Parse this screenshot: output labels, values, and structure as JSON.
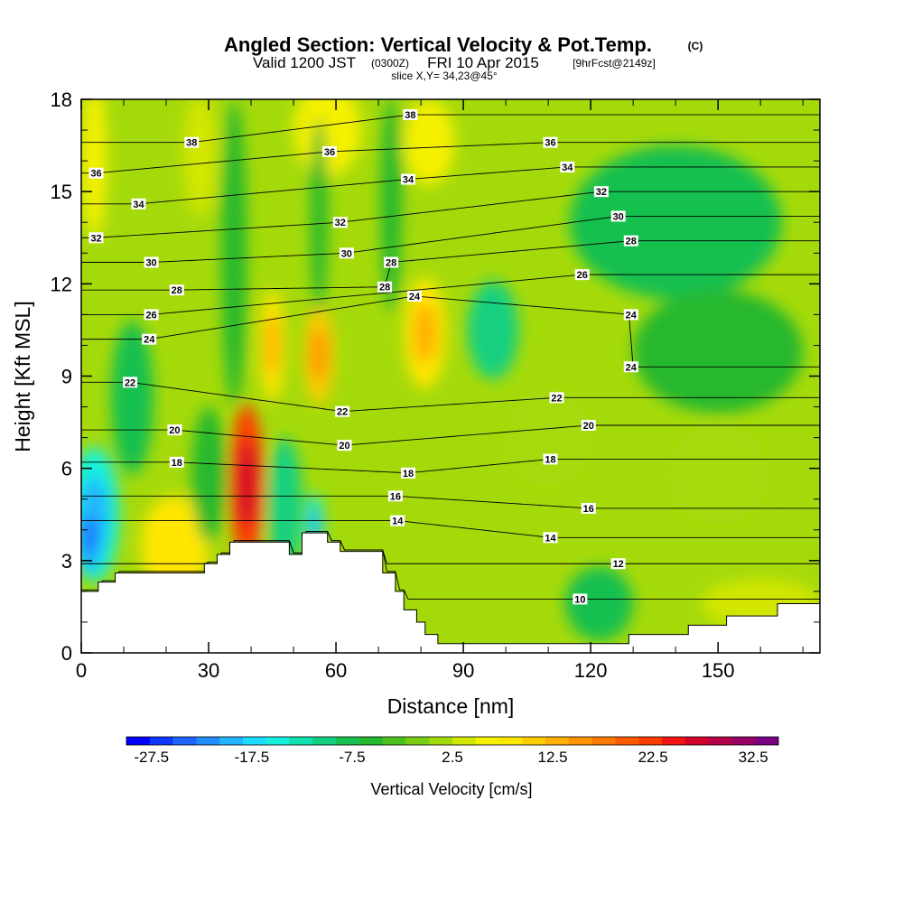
{
  "title": {
    "main": "Angled Section: Vertical Velocity & Pot.Temp.",
    "main_suffix": "(C)",
    "valid_a": "Valid 1200 JST",
    "valid_b": "(0300Z)",
    "valid_c": "FRI 10 Apr 2015",
    "valid_d": "[9hrFcst@2149z]",
    "slice": "slice X,Y= 34,23@45°"
  },
  "chart_data": {
    "type": "heatmap",
    "xlabel": "Distance [nm]",
    "ylabel": "Height [Kft MSL]",
    "xlim": [
      0,
      174
    ],
    "ylim": [
      0,
      18
    ],
    "x_ticks": [
      "0",
      "30",
      "60",
      "90",
      "120",
      "150"
    ],
    "y_ticks": [
      "0",
      "3",
      "6",
      "9",
      "12",
      "15",
      "18"
    ],
    "x_tick_values": [
      0,
      30,
      60,
      90,
      120,
      150
    ],
    "y_tick_values": [
      0,
      3,
      6,
      9,
      12,
      15,
      18
    ],
    "colorbar": {
      "label": "Vertical Velocity [cm/s]",
      "tick_labels": [
        "-27.5",
        "-17.5",
        "-7.5",
        "2.5",
        "12.5",
        "22.5",
        "32.5"
      ],
      "bounds": [
        -30,
        35
      ],
      "step": 2.5,
      "colors": [
        "#0000ff",
        "#0f37ff",
        "#1e64ff",
        "#238cff",
        "#23b4ff",
        "#1edcff",
        "#14f0dc",
        "#10e0b0",
        "#12d080",
        "#15c050",
        "#25b82d",
        "#4bc01e",
        "#78cc14",
        "#a5da0a",
        "#d2e600",
        "#f5f000",
        "#ffe600",
        "#ffcc00",
        "#ffb000",
        "#ff9400",
        "#ff7800",
        "#ff5a00",
        "#ff3c00",
        "#f01414",
        "#d20028",
        "#b40046",
        "#960064",
        "#780082"
      ]
    },
    "velocity_cells": [
      {
        "x": 12,
        "y": 8.3,
        "rx": 5,
        "ry": 2.5,
        "v": -7.5
      },
      {
        "x": 3,
        "y": 4.5,
        "rx": 6,
        "ry": 2.2,
        "v": -15
      },
      {
        "x": 2,
        "y": 3.8,
        "rx": 3,
        "ry": 1.2,
        "v": -20
      },
      {
        "x": 22,
        "y": 3.5,
        "rx": 8,
        "ry": 1.6,
        "v": 10
      },
      {
        "x": 39,
        "y": 5.5,
        "rx": 4,
        "ry": 2.6,
        "v": 27
      },
      {
        "x": 30,
        "y": 5.8,
        "rx": 4,
        "ry": 2.2,
        "v": -5
      },
      {
        "x": 48,
        "y": 4.8,
        "rx": 4,
        "ry": 2.2,
        "v": -8
      },
      {
        "x": 55,
        "y": 4.2,
        "rx": 2,
        "ry": 1.0,
        "v": -14
      },
      {
        "x": 45,
        "y": 10.0,
        "rx": 3,
        "ry": 1.8,
        "v": 12
      },
      {
        "x": 56,
        "y": 9.7,
        "rx": 3.5,
        "ry": 1.6,
        "v": 14
      },
      {
        "x": 81,
        "y": 10.4,
        "rx": 5,
        "ry": 1.8,
        "v": 12
      },
      {
        "x": 97,
        "y": 10.5,
        "rx": 6,
        "ry": 1.6,
        "v": -9
      },
      {
        "x": 58,
        "y": 17.0,
        "rx": 8,
        "ry": 1.5,
        "v": 8
      },
      {
        "x": 82,
        "y": 16.6,
        "rx": 6,
        "ry": 1.4,
        "v": 8
      },
      {
        "x": 28,
        "y": 16.2,
        "rx": 4,
        "ry": 2.0,
        "v": 6
      },
      {
        "x": 3,
        "y": 16.0,
        "rx": 3,
        "ry": 2.5,
        "v": 8
      },
      {
        "x": 36,
        "y": 13.0,
        "rx": 3,
        "ry": 5.0,
        "v": -4
      },
      {
        "x": 56,
        "y": 14.2,
        "rx": 2,
        "ry": 3.2,
        "v": -5
      },
      {
        "x": 73,
        "y": 14.6,
        "rx": 2.5,
        "ry": 3.5,
        "v": -5
      },
      {
        "x": 140,
        "y": 14.0,
        "rx": 25,
        "ry": 2.5,
        "v": -7
      },
      {
        "x": 150,
        "y": 9.8,
        "rx": 20,
        "ry": 2.0,
        "v": -4
      },
      {
        "x": 122,
        "y": 1.6,
        "rx": 8,
        "ry": 1.2,
        "v": -6
      },
      {
        "x": 150,
        "y": 5.8,
        "rx": 12,
        "ry": 1.6,
        "v": 4
      },
      {
        "x": 110,
        "y": 7.0,
        "rx": 10,
        "ry": 1.6,
        "v": 3
      },
      {
        "x": 160,
        "y": 1.6,
        "rx": 14,
        "ry": 0.8,
        "v": 5
      }
    ],
    "terrain": [
      [
        0,
        2.0
      ],
      [
        4,
        2.0
      ],
      [
        4,
        2.3
      ],
      [
        8,
        2.3
      ],
      [
        8,
        2.6
      ],
      [
        29,
        2.6
      ],
      [
        29,
        2.9
      ],
      [
        32,
        2.9
      ],
      [
        32,
        3.2
      ],
      [
        35,
        3.2
      ],
      [
        35,
        3.6
      ],
      [
        49,
        3.6
      ],
      [
        49,
        3.2
      ],
      [
        52,
        3.2
      ],
      [
        52,
        3.9
      ],
      [
        58,
        3.9
      ],
      [
        58,
        3.6
      ],
      [
        61,
        3.6
      ],
      [
        61,
        3.3
      ],
      [
        71,
        3.3
      ],
      [
        71,
        2.6
      ],
      [
        74,
        2.6
      ],
      [
        74,
        2.0
      ],
      [
        76,
        2.0
      ],
      [
        76,
        1.4
      ],
      [
        79,
        1.4
      ],
      [
        79,
        1.0
      ],
      [
        81,
        1.0
      ],
      [
        81,
        0.6
      ],
      [
        84,
        0.6
      ],
      [
        84,
        0.3
      ],
      [
        129,
        0.3
      ],
      [
        129,
        0.6
      ],
      [
        143,
        0.6
      ],
      [
        143,
        0.9
      ],
      [
        152,
        0.9
      ],
      [
        152,
        1.2
      ],
      [
        164,
        1.2
      ],
      [
        164,
        1.6
      ],
      [
        174,
        1.6
      ]
    ],
    "theta_contours": [
      {
        "value": 10,
        "labels": [
          [
            117.5,
            1.75
          ]
        ]
      },
      {
        "value": 12,
        "labels": [
          [
            126.5,
            2.9
          ]
        ]
      },
      {
        "value": 14,
        "labels": [
          [
            74.5,
            4.3
          ],
          [
            110.5,
            3.75
          ]
        ]
      },
      {
        "value": 16,
        "labels": [
          [
            74,
            5.1
          ],
          [
            119.5,
            4.7
          ]
        ]
      },
      {
        "value": 18,
        "labels": [
          [
            22.5,
            6.2
          ],
          [
            77,
            5.85
          ],
          [
            110.5,
            6.3
          ]
        ]
      },
      {
        "value": 20,
        "labels": [
          [
            22,
            7.25
          ],
          [
            62,
            6.75
          ],
          [
            119.5,
            7.4
          ]
        ]
      },
      {
        "value": 22,
        "labels": [
          [
            11.5,
            8.8
          ],
          [
            61.5,
            7.85
          ],
          [
            112,
            8.3
          ]
        ]
      },
      {
        "value": 24,
        "labels": [
          [
            16,
            10.2
          ],
          [
            78.5,
            11.6
          ],
          [
            129.5,
            11.0
          ],
          [
            129.5,
            9.3
          ]
        ]
      },
      {
        "value": 26,
        "labels": [
          [
            16.5,
            11.0
          ],
          [
            118,
            12.3
          ]
        ]
      },
      {
        "value": 28,
        "labels": [
          [
            22.5,
            11.8
          ],
          [
            71.5,
            11.9
          ],
          [
            73,
            12.7
          ],
          [
            129.5,
            13.4
          ]
        ]
      },
      {
        "value": 30,
        "labels": [
          [
            16.5,
            12.7
          ],
          [
            62.5,
            13.0
          ],
          [
            126.5,
            14.2
          ]
        ]
      },
      {
        "value": 32,
        "labels": [
          [
            3.5,
            13.5
          ],
          [
            61,
            14.0
          ],
          [
            122.5,
            15.0
          ]
        ]
      },
      {
        "value": 34,
        "labels": [
          [
            13.5,
            14.6
          ],
          [
            77,
            15.4
          ],
          [
            114.5,
            15.8
          ]
        ]
      },
      {
        "value": 36,
        "labels": [
          [
            3.5,
            15.6
          ],
          [
            58.5,
            16.3
          ],
          [
            110.5,
            16.6
          ]
        ]
      },
      {
        "value": 38,
        "labels": [
          [
            26,
            16.6
          ],
          [
            77.5,
            17.5
          ]
        ]
      }
    ]
  }
}
